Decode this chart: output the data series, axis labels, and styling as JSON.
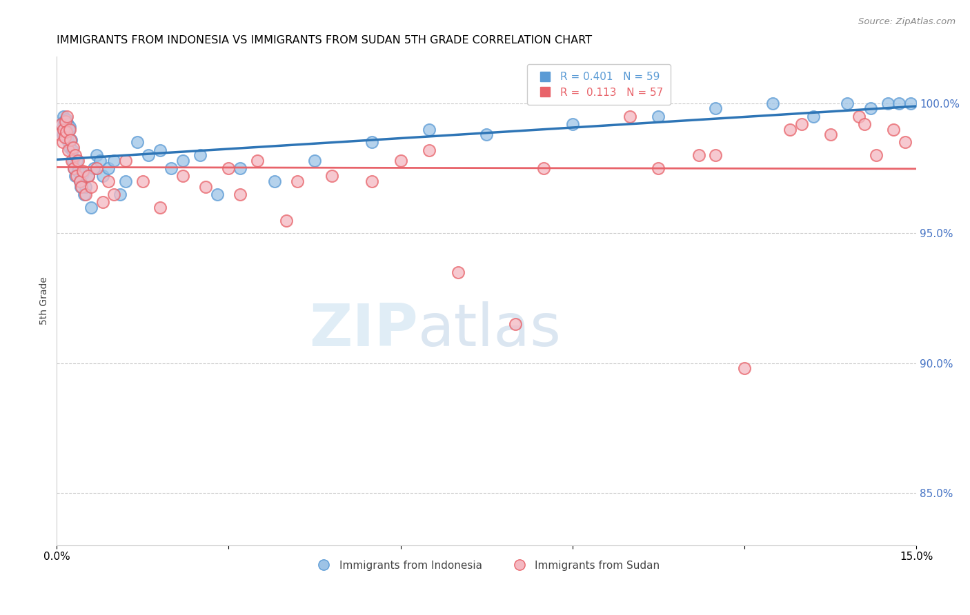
{
  "title": "IMMIGRANTS FROM INDONESIA VS IMMIGRANTS FROM SUDAN 5TH GRADE CORRELATION CHART",
  "source": "Source: ZipAtlas.com",
  "ylabel": "5th Grade",
  "xmin": 0.0,
  "xmax": 15.0,
  "ymin": 83.0,
  "ymax": 101.8,
  "yticks": [
    85.0,
    90.0,
    95.0,
    100.0
  ],
  "ytick_labels": [
    "85.0%",
    "90.0%",
    "95.0%",
    "100.0%"
  ],
  "r_legend": [
    {
      "label": "R = 0.401",
      "n_label": "N = 59",
      "color": "#5b9bd5"
    },
    {
      "label": "R =  0.113",
      "n_label": "N = 57",
      "color": "#e8636a"
    }
  ],
  "bottom_legend": [
    {
      "label": "Immigrants from Indonesia",
      "color": "#9dc3e6",
      "edge": "#5b9bd5"
    },
    {
      "label": "Immigrants from Sudan",
      "color": "#f4b8c1",
      "edge": "#e8636a"
    }
  ],
  "watermark_zip": "ZIP",
  "watermark_atlas": "atlas",
  "indonesia_color": "#9dc3e6",
  "indonesia_edge": "#5b9bd5",
  "sudan_color": "#f4b8c1",
  "sudan_edge": "#e8636a",
  "blue_line_color": "#2e75b6",
  "pink_line_color": "#e8636a",
  "indonesia_x": [
    0.05,
    0.08,
    0.1,
    0.12,
    0.13,
    0.15,
    0.16,
    0.17,
    0.18,
    0.19,
    0.2,
    0.21,
    0.22,
    0.23,
    0.25,
    0.27,
    0.28,
    0.3,
    0.32,
    0.35,
    0.37,
    0.4,
    0.42,
    0.45,
    0.48,
    0.5,
    0.55,
    0.6,
    0.65,
    0.7,
    0.75,
    0.8,
    0.9,
    1.0,
    1.1,
    1.2,
    1.4,
    1.6,
    1.8,
    2.0,
    2.2,
    2.5,
    2.8,
    3.2,
    3.8,
    4.5,
    5.5,
    6.5,
    7.5,
    9.0,
    10.5,
    11.5,
    12.5,
    13.2,
    13.8,
    14.2,
    14.5,
    14.7,
    14.9
  ],
  "indonesia_y": [
    99.0,
    99.2,
    98.8,
    99.5,
    99.3,
    99.1,
    98.9,
    99.4,
    98.7,
    99.2,
    98.5,
    99.0,
    98.3,
    99.1,
    98.6,
    98.2,
    97.8,
    97.5,
    97.2,
    97.8,
    97.4,
    97.0,
    96.8,
    97.3,
    96.5,
    96.8,
    97.2,
    96.0,
    97.5,
    98.0,
    97.8,
    97.2,
    97.5,
    97.8,
    96.5,
    97.0,
    98.5,
    98.0,
    98.2,
    97.5,
    97.8,
    98.0,
    96.5,
    97.5,
    97.0,
    97.8,
    98.5,
    99.0,
    98.8,
    99.2,
    99.5,
    99.8,
    100.0,
    99.5,
    100.0,
    99.8,
    100.0,
    100.0,
    100.0
  ],
  "sudan_x": [
    0.05,
    0.08,
    0.1,
    0.12,
    0.14,
    0.15,
    0.17,
    0.18,
    0.2,
    0.22,
    0.24,
    0.26,
    0.28,
    0.3,
    0.32,
    0.35,
    0.37,
    0.4,
    0.43,
    0.46,
    0.5,
    0.55,
    0.6,
    0.7,
    0.8,
    0.9,
    1.0,
    1.2,
    1.5,
    1.8,
    2.2,
    2.6,
    3.0,
    3.5,
    4.0,
    4.8,
    5.5,
    6.0,
    7.0,
    8.5,
    10.0,
    11.5,
    12.0,
    13.0,
    13.5,
    14.0,
    14.3,
    14.6,
    14.8,
    3.2,
    4.2,
    6.5,
    8.0,
    10.5,
    11.2,
    12.8,
    14.1
  ],
  "sudan_y": [
    98.8,
    99.2,
    98.5,
    99.0,
    98.7,
    99.3,
    98.9,
    99.5,
    98.2,
    99.0,
    98.6,
    97.8,
    98.3,
    97.5,
    98.0,
    97.2,
    97.8,
    97.0,
    96.8,
    97.4,
    96.5,
    97.2,
    96.8,
    97.5,
    96.2,
    97.0,
    96.5,
    97.8,
    97.0,
    96.0,
    97.2,
    96.8,
    97.5,
    97.8,
    95.5,
    97.2,
    97.0,
    97.8,
    93.5,
    97.5,
    99.5,
    98.0,
    89.8,
    99.2,
    98.8,
    99.5,
    98.0,
    99.0,
    98.5,
    96.5,
    97.0,
    98.2,
    91.5,
    97.5,
    98.0,
    99.0,
    99.2
  ]
}
